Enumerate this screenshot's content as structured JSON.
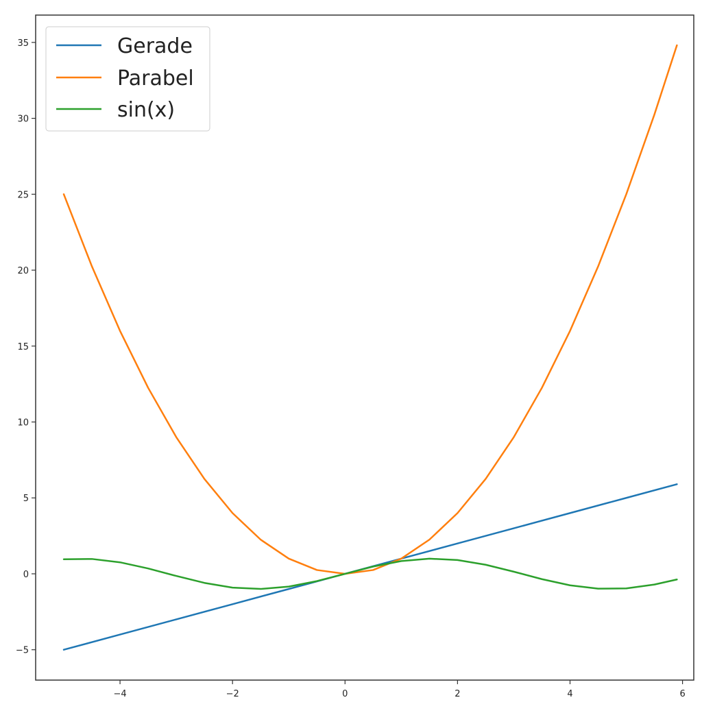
{
  "chart_data": {
    "type": "line",
    "title": "",
    "xlabel": "",
    "ylabel": "",
    "xlim": [
      -5.5,
      6.2
    ],
    "ylim": [
      -7,
      36.8
    ],
    "x_ticks": [
      -4,
      -2,
      0,
      2,
      4,
      6
    ],
    "y_ticks": [
      -5,
      0,
      5,
      10,
      15,
      20,
      25,
      30,
      35
    ],
    "x_tick_labels": [
      "−4",
      "−2",
      "0",
      "2",
      "4",
      "6"
    ],
    "y_tick_labels": [
      "−5",
      "0",
      "5",
      "10",
      "15",
      "20",
      "25",
      "30",
      "35"
    ],
    "grid": false,
    "legend_position": "top-left",
    "series": [
      {
        "name": "Gerade",
        "color": "#1f77b4",
        "x": [
          -5,
          -4,
          -3,
          -2,
          -1,
          0,
          1,
          2,
          3,
          4,
          5,
          5.9
        ],
        "y": [
          -5,
          -4,
          -3,
          -2,
          -1,
          0,
          1,
          2,
          3,
          4,
          5,
          5.9
        ]
      },
      {
        "name": "Parabel",
        "color": "#ff7f0e",
        "x": [
          -5,
          -4.5,
          -4,
          -3.5,
          -3,
          -2.5,
          -2,
          -1.5,
          -1,
          -0.5,
          0,
          0.5,
          1,
          1.5,
          2,
          2.5,
          3,
          3.5,
          4,
          4.5,
          5,
          5.5,
          5.9
        ],
        "y": [
          25,
          20.25,
          16,
          12.25,
          9,
          6.25,
          4,
          2.25,
          1,
          0.25,
          0,
          0.25,
          1,
          2.25,
          4,
          6.25,
          9,
          12.25,
          16,
          20.25,
          25,
          30.25,
          34.81
        ]
      },
      {
        "name": "sin(x)",
        "color": "#2ca02c",
        "x": [
          -5,
          -4.5,
          -4,
          -3.5,
          -3,
          -2.5,
          -2,
          -1.5,
          -1,
          -0.5,
          0,
          0.5,
          1,
          1.5,
          2,
          2.5,
          3,
          3.5,
          4,
          4.5,
          5,
          5.5,
          5.9
        ],
        "y": [
          0.959,
          0.978,
          0.757,
          0.351,
          -0.141,
          -0.598,
          -0.909,
          -0.997,
          -0.841,
          -0.479,
          0,
          0.479,
          0.841,
          0.997,
          0.909,
          0.598,
          0.141,
          -0.351,
          -0.757,
          -0.978,
          -0.959,
          -0.706,
          -0.374
        ]
      }
    ]
  }
}
